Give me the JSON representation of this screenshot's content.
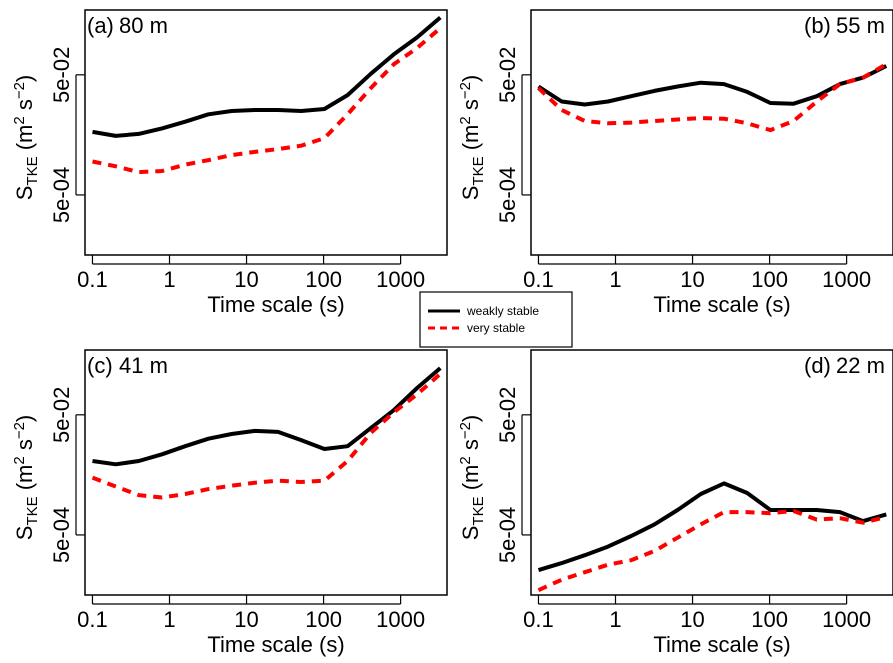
{
  "legend": {
    "entries": [
      {
        "label": "weakly stable",
        "color": "#000000",
        "dash": "solid"
      },
      {
        "label": "very stable",
        "color": "#ff0000",
        "dash": "dashed"
      }
    ],
    "placement": "center"
  },
  "axis_text": {
    "xlabel": "Time scale (s)",
    "ylabel_main": "S",
    "ylabel_sub": "TKE",
    "ylabel_unit_open": "(m",
    "ylabel_exp1": "2",
    "ylabel_mid": "s",
    "ylabel_exp2": "−2",
    "ylabel_close": ")"
  },
  "chart_data": [
    {
      "type": "line",
      "panel_label": "(a)",
      "height_label": "80 m",
      "xscale": "log",
      "yscale": "log",
      "xlabel": "Time scale (s)",
      "ylabel": "STKE (m2 s-2)",
      "xlim": [
        0.08,
        4000
      ],
      "ylim": [
        5e-05,
        0.6
      ],
      "xticks": [
        0.1,
        1,
        10,
        100,
        1000
      ],
      "xtick_labels": [
        "0.1",
        "1",
        "10",
        "100",
        "1000"
      ],
      "yticks": [
        0.0005,
        0.05
      ],
      "ytick_labels": [
        "5e-04",
        "5e-02"
      ],
      "grid": false,
      "x": [
        0.1,
        0.2,
        0.4,
        0.8,
        1.6,
        3.2,
        6.4,
        12.8,
        25.6,
        51.2,
        102.4,
        204.8,
        409.6,
        819.2,
        1638.4,
        3276.8
      ],
      "series": [
        {
          "name": "weakly stable",
          "color": "#000000",
          "dash": "solid",
          "values": [
            0.0056,
            0.0048,
            0.0052,
            0.0064,
            0.0083,
            0.011,
            0.0125,
            0.013,
            0.013,
            0.0125,
            0.0135,
            0.023,
            0.052,
            0.11,
            0.21,
            0.45
          ]
        },
        {
          "name": "very stable",
          "color": "#ff0000",
          "dash": "dashed",
          "values": [
            0.0018,
            0.0015,
            0.0012,
            0.00125,
            0.0016,
            0.0019,
            0.0023,
            0.0026,
            0.0029,
            0.0033,
            0.0044,
            0.011,
            0.03,
            0.075,
            0.14,
            0.3
          ]
        }
      ]
    },
    {
      "type": "line",
      "panel_label": "(b)",
      "height_label": "55 m",
      "xscale": "log",
      "yscale": "log",
      "xlabel": "Time scale (s)",
      "ylabel": "STKE (m2 s-2)",
      "xlim": [
        0.08,
        4000
      ],
      "ylim": [
        5e-05,
        0.6
      ],
      "xticks": [
        0.1,
        1,
        10,
        100,
        1000
      ],
      "xtick_labels": [
        "0.1",
        "1",
        "10",
        "100",
        "1000"
      ],
      "yticks": [
        0.0005,
        0.05
      ],
      "ytick_labels": [
        "5e-04",
        "5e-02"
      ],
      "grid": false,
      "x": [
        0.1,
        0.2,
        0.4,
        0.8,
        1.6,
        3.2,
        6.4,
        12.8,
        25.6,
        51.2,
        102.4,
        204.8,
        409.6,
        819.2,
        1638.4,
        3276.8
      ],
      "series": [
        {
          "name": "weakly stable",
          "color": "#000000",
          "dash": "solid",
          "values": [
            0.032,
            0.018,
            0.016,
            0.018,
            0.022,
            0.027,
            0.032,
            0.037,
            0.035,
            0.026,
            0.017,
            0.0165,
            0.022,
            0.035,
            0.045,
            0.07
          ]
        },
        {
          "name": "very stable",
          "color": "#ff0000",
          "dash": "dashed",
          "values": [
            0.03,
            0.013,
            0.0085,
            0.0078,
            0.008,
            0.0085,
            0.009,
            0.0095,
            0.0093,
            0.0078,
            0.006,
            0.0085,
            0.018,
            0.035,
            0.045,
            0.075
          ]
        }
      ]
    },
    {
      "type": "line",
      "panel_label": "(c)",
      "height_label": "41 m",
      "xscale": "log",
      "yscale": "log",
      "xlabel": "Time scale (s)",
      "ylabel": "STKE (m2 s-2)",
      "xlim": [
        0.08,
        4000
      ],
      "ylim": [
        5e-05,
        0.6
      ],
      "xticks": [
        0.1,
        1,
        10,
        100,
        1000
      ],
      "xtick_labels": [
        "0.1",
        "1",
        "10",
        "100",
        "1000"
      ],
      "yticks": [
        0.0005,
        0.05
      ],
      "ytick_labels": [
        "5e-04",
        "5e-02"
      ],
      "grid": false,
      "x": [
        0.1,
        0.2,
        0.4,
        0.8,
        1.6,
        3.2,
        6.4,
        12.8,
        25.6,
        51.2,
        102.4,
        204.8,
        409.6,
        819.2,
        1638.4,
        3276.8
      ],
      "series": [
        {
          "name": "weakly stable",
          "color": "#000000",
          "dash": "solid",
          "values": [
            0.0085,
            0.0075,
            0.0085,
            0.011,
            0.015,
            0.02,
            0.024,
            0.027,
            0.026,
            0.019,
            0.0135,
            0.015,
            0.03,
            0.06,
            0.14,
            0.3
          ]
        },
        {
          "name": "very stable",
          "color": "#ff0000",
          "dash": "dashed",
          "values": [
            0.0045,
            0.0032,
            0.0023,
            0.0021,
            0.0024,
            0.0029,
            0.0033,
            0.0037,
            0.004,
            0.0038,
            0.004,
            0.0085,
            0.025,
            0.055,
            0.11,
            0.24
          ]
        }
      ]
    },
    {
      "type": "line",
      "panel_label": "(d)",
      "height_label": "22 m",
      "xscale": "log",
      "yscale": "log",
      "xlabel": "Time scale (s)",
      "ylabel": "STKE (m2 s-2)",
      "xlim": [
        0.08,
        4000
      ],
      "ylim": [
        5e-05,
        0.6
      ],
      "xticks": [
        0.1,
        1,
        10,
        100,
        1000
      ],
      "xtick_labels": [
        "0.1",
        "1",
        "10",
        "100",
        "1000"
      ],
      "yticks": [
        0.0005,
        0.05
      ],
      "ytick_labels": [
        "5e-04",
        "5e-02"
      ],
      "grid": false,
      "x": [
        0.1,
        0.2,
        0.4,
        0.8,
        1.6,
        3.2,
        6.4,
        12.8,
        25.6,
        51.2,
        102.4,
        204.8,
        409.6,
        819.2,
        1638.4,
        3276.8
      ],
      "series": [
        {
          "name": "weakly stable",
          "color": "#000000",
          "dash": "solid",
          "values": [
            0.00013,
            0.00017,
            0.00023,
            0.00032,
            0.00048,
            0.00075,
            0.0013,
            0.0024,
            0.0036,
            0.0025,
            0.0013,
            0.0013,
            0.0013,
            0.0012,
            0.00085,
            0.0011
          ]
        },
        {
          "name": "very stable",
          "color": "#ff0000",
          "dash": "dashed",
          "values": [
            6e-05,
            9e-05,
            0.00012,
            0.00016,
            0.00019,
            0.00027,
            0.00045,
            0.00075,
            0.0012,
            0.0012,
            0.00115,
            0.00125,
            0.0009,
            0.00095,
            0.0008,
            0.001
          ]
        }
      ]
    }
  ]
}
